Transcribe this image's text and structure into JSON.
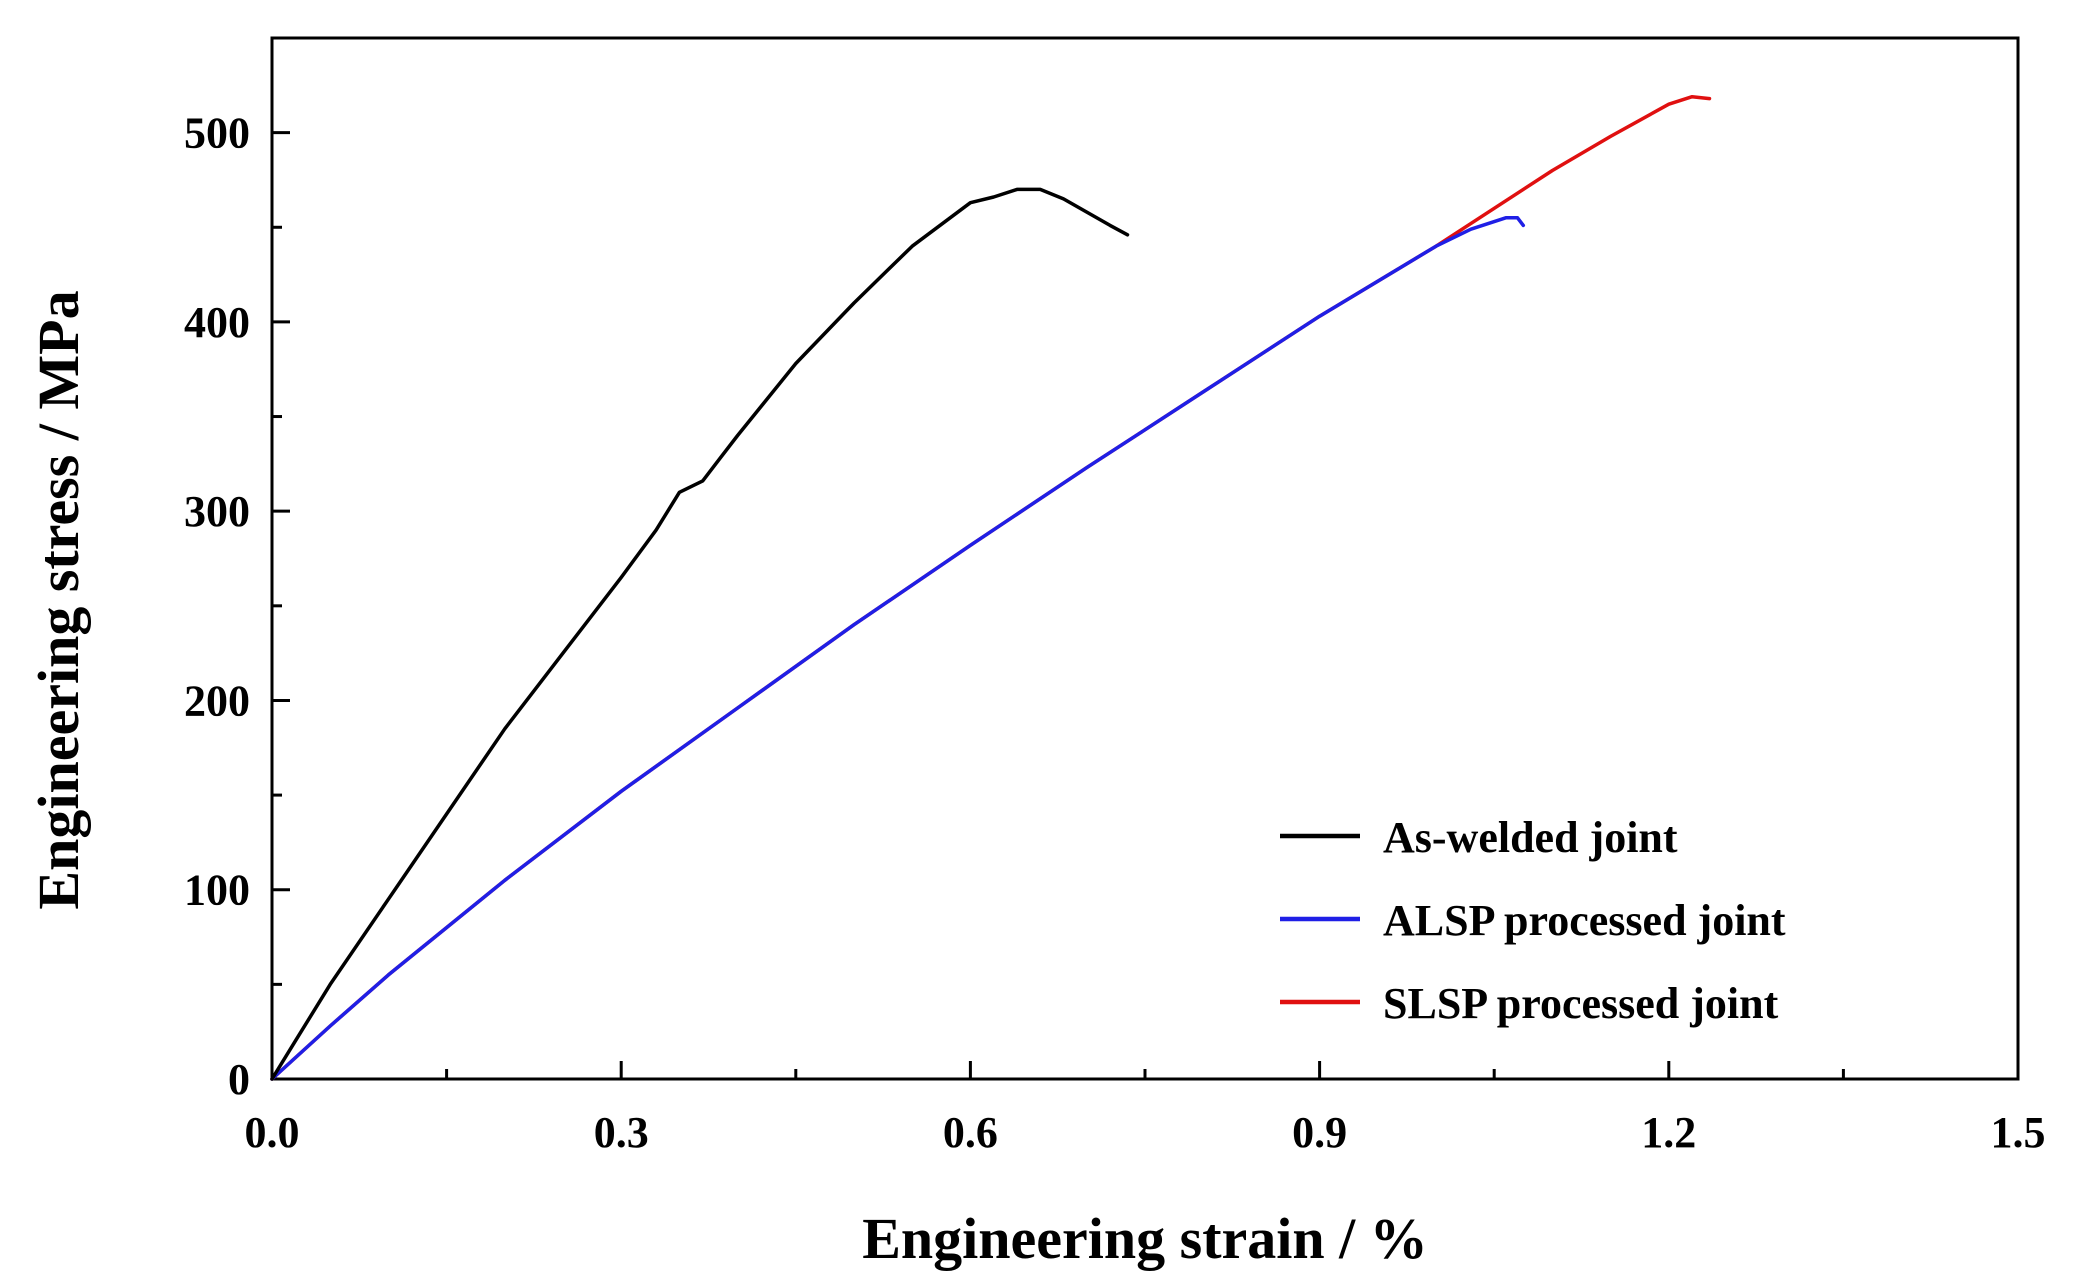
{
  "chart_data": {
    "type": "line",
    "title": "",
    "xlabel": "Engineering strain / %",
    "ylabel": "Engineering stress / MPa",
    "xlim": [
      0,
      1.5
    ],
    "ylim": [
      0,
      550
    ],
    "x_ticks": [
      {
        "value": 0.0,
        "label": "0.0"
      },
      {
        "value": 0.3,
        "label": "0.3"
      },
      {
        "value": 0.6,
        "label": "0.6"
      },
      {
        "value": 0.9,
        "label": "0.9"
      },
      {
        "value": 1.2,
        "label": "1.2"
      },
      {
        "value": 1.5,
        "label": "1.5"
      }
    ],
    "x_minor_ticks": [
      0.15,
      0.45,
      0.75,
      1.05,
      1.35
    ],
    "y_ticks": [
      {
        "value": 0,
        "label": "0"
      },
      {
        "value": 100,
        "label": "100"
      },
      {
        "value": 200,
        "label": "200"
      },
      {
        "value": 300,
        "label": "300"
      },
      {
        "value": 400,
        "label": "400"
      },
      {
        "value": 500,
        "label": "500"
      }
    ],
    "y_minor_ticks": [
      50,
      150,
      250,
      350,
      450
    ],
    "grid": false,
    "legend_position": "bottom-right",
    "series": [
      {
        "name": "As-welded joint",
        "color": "#000000",
        "x": [
          0,
          0.02,
          0.05,
          0.1,
          0.15,
          0.2,
          0.25,
          0.3,
          0.33,
          0.35,
          0.37,
          0.385,
          0.4,
          0.45,
          0.5,
          0.55,
          0.6,
          0.62,
          0.64,
          0.66,
          0.68,
          0.7,
          0.72,
          0.735
        ],
        "y": [
          0,
          20,
          50,
          95,
          140,
          185,
          225,
          265,
          290,
          310,
          316,
          328,
          340,
          378,
          410,
          440,
          463,
          466,
          470,
          470,
          465,
          458,
          451,
          446
        ]
      },
      {
        "name": "ALSP processed joint",
        "color": "#1f1fe6",
        "x": [
          0,
          0.05,
          0.1,
          0.2,
          0.3,
          0.4,
          0.5,
          0.6,
          0.7,
          0.8,
          0.9,
          1.0,
          1.03,
          1.06,
          1.07,
          1.075
        ],
        "y": [
          0,
          28,
          55,
          105,
          152,
          196,
          240,
          282,
          323,
          363,
          403,
          440,
          449,
          455,
          455,
          451
        ]
      },
      {
        "name": "SLSP processed joint",
        "color": "#e01010",
        "x": [
          0,
          0.05,
          0.1,
          0.2,
          0.3,
          0.4,
          0.5,
          0.6,
          0.7,
          0.8,
          0.9,
          1.0,
          1.1,
          1.15,
          1.2,
          1.22,
          1.235
        ],
        "y": [
          0,
          28,
          55,
          105,
          152,
          196,
          240,
          282,
          323,
          363,
          403,
          440,
          480,
          498,
          515,
          519,
          518
        ]
      }
    ]
  }
}
